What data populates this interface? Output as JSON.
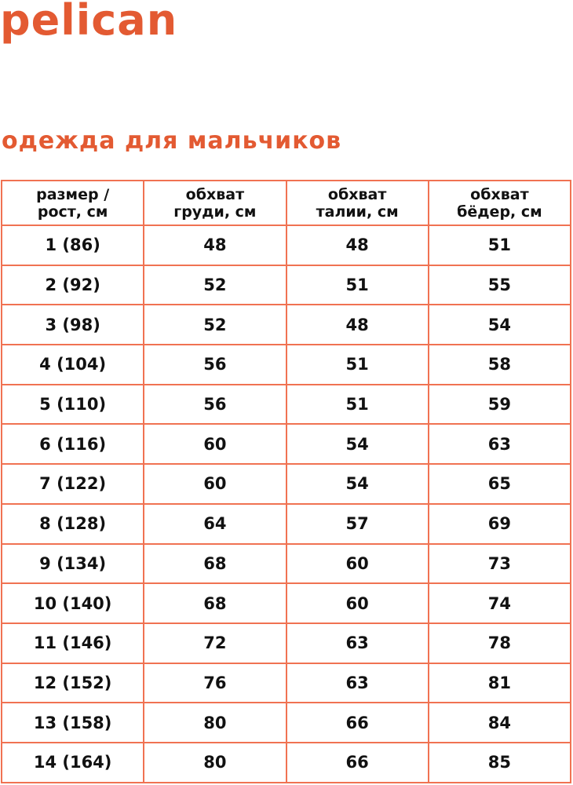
{
  "brand": {
    "logo_text": "pelican",
    "color": "#e35a32"
  },
  "page_title": "одежда для мальчиков",
  "table": {
    "border_color": "#f07252",
    "headers": [
      "размер / рост, см",
      "обхват груди, см",
      "обхват талии, см",
      "обхват бёдер, см"
    ],
    "rows": [
      [
        "1 (86)",
        "48",
        "48",
        "51"
      ],
      [
        "2 (92)",
        "52",
        "51",
        "55"
      ],
      [
        "3 (98)",
        "52",
        "48",
        "54"
      ],
      [
        "4 (104)",
        "56",
        "51",
        "58"
      ],
      [
        "5 (110)",
        "56",
        "51",
        "59"
      ],
      [
        "6 (116)",
        "60",
        "54",
        "63"
      ],
      [
        "7 (122)",
        "60",
        "54",
        "65"
      ],
      [
        "8 (128)",
        "64",
        "57",
        "69"
      ],
      [
        "9 (134)",
        "68",
        "60",
        "73"
      ],
      [
        "10 (140)",
        "68",
        "60",
        "74"
      ],
      [
        "11 (146)",
        "72",
        "63",
        "78"
      ],
      [
        "12 (152)",
        "76",
        "63",
        "81"
      ],
      [
        "13 (158)",
        "80",
        "66",
        "84"
      ],
      [
        "14 (164)",
        "80",
        "66",
        "85"
      ]
    ]
  }
}
